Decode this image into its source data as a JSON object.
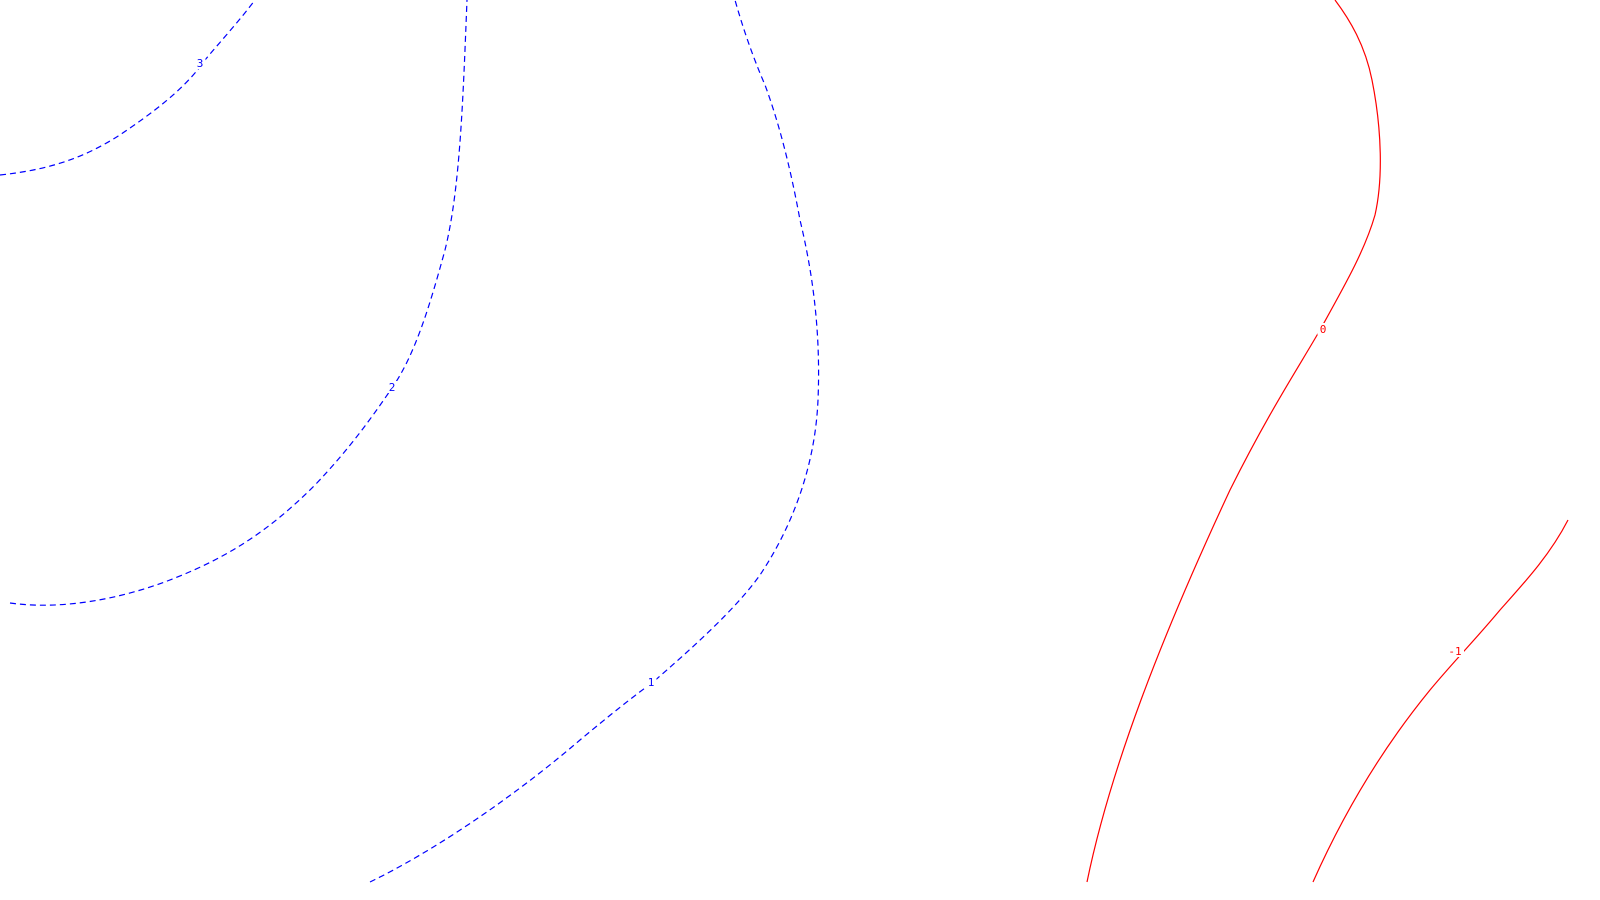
{
  "chart_data": {
    "type": "contour",
    "title": "",
    "xlabel": "",
    "ylabel": "",
    "grid": false,
    "colors": {
      "positive": "#0000ff",
      "negative": "#ff0000",
      "zero": "#ff0000"
    },
    "contours": [
      {
        "level": 3,
        "label": "3",
        "style": "dashed",
        "color": "#0000ff"
      },
      {
        "level": 2,
        "label": "2",
        "style": "dashed",
        "color": "#0000ff"
      },
      {
        "level": 1,
        "label": "1",
        "style": "dashed",
        "color": "#0000ff"
      },
      {
        "level": 0,
        "label": "0",
        "style": "solid",
        "color": "#ff0000"
      },
      {
        "level": -1,
        "label": "-1",
        "style": "solid",
        "color": "#ff0000"
      }
    ]
  }
}
